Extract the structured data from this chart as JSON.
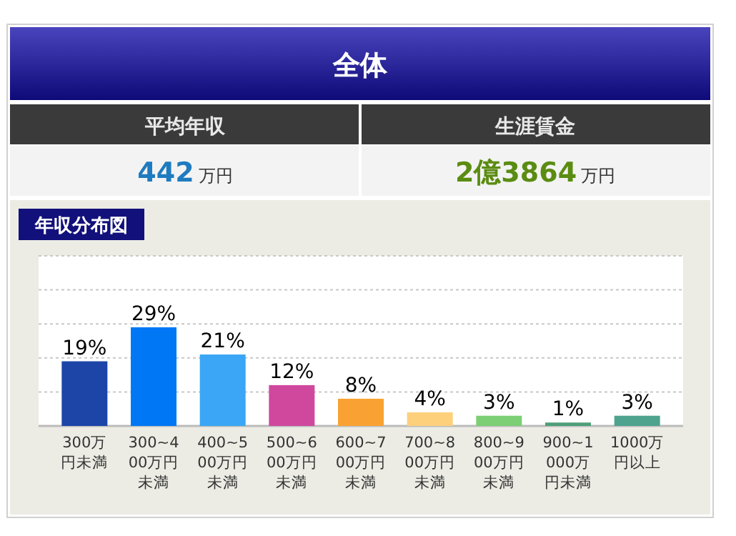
{
  "chart_data": [
    {
      "type": "other",
      "title": "全体",
      "annotations": [
        "平均年収",
        "442万円",
        "生涯賃金",
        "2億3864万円"
      ]
    },
    {
      "type": "bar",
      "title": "年収分布図",
      "categories": [
        "300万円未満",
        "300~400万円未満",
        "400~500万円未満",
        "500~600万円未満",
        "600~700万円未満",
        "700~800万円未満",
        "800~900万円未満",
        "900~1000万円未満",
        "1000万円以上"
      ],
      "values": [
        19,
        29,
        21,
        12,
        8,
        4,
        3,
        1,
        3
      ],
      "value_labels": [
        "19%",
        "29%",
        "21%",
        "12%",
        "8%",
        "4%",
        "3%",
        "1%",
        "3%"
      ],
      "colors": [
        "#1d45a8",
        "#0077f5",
        "#3aa6f5",
        "#d0489e",
        "#f9a233",
        "#fdd07c",
        "#7ccf74",
        "#4f9f79",
        "#4ea38e"
      ],
      "ylim": [
        0,
        50
      ],
      "yticks": [
        {
          "value": 0,
          "label": null
        },
        {
          "value": 10,
          "label": null
        },
        {
          "value": 20,
          "label": null
        },
        {
          "value": 30,
          "label": null
        },
        {
          "value": 40,
          "label": null
        },
        {
          "value": 50,
          "label": null
        }
      ],
      "grid": "y"
    }
  ]
}
